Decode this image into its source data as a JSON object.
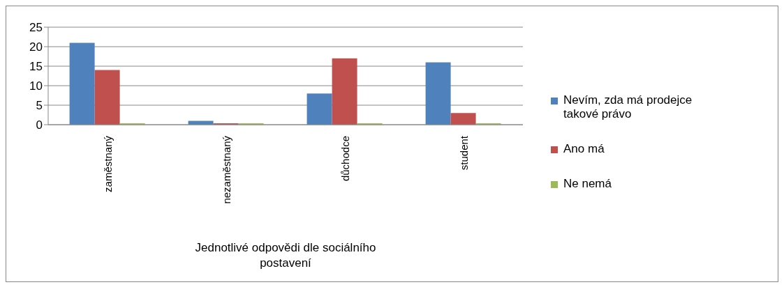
{
  "chart_data": {
    "type": "bar",
    "xlabel": "Jednotlivé odpovědi dle sociálního postavení",
    "categories": [
      "zaměstnaný",
      "nezaměstnaný",
      "důchodce",
      "student"
    ],
    "series": [
      {
        "name": "Nevím, zda má prodejce takové právo",
        "color": "#4f81bd",
        "values": [
          21,
          1,
          8,
          16
        ]
      },
      {
        "name": "Ano má",
        "color": "#c0504d",
        "values": [
          14,
          0,
          17,
          3
        ]
      },
      {
        "name": "Ne nemá",
        "color": "#9bbb59",
        "values": [
          0,
          0,
          0,
          0
        ]
      }
    ],
    "ylim": [
      0,
      25
    ],
    "yticks": [
      0,
      5,
      10,
      15,
      20,
      25
    ],
    "grid": "y",
    "legend": "right"
  }
}
